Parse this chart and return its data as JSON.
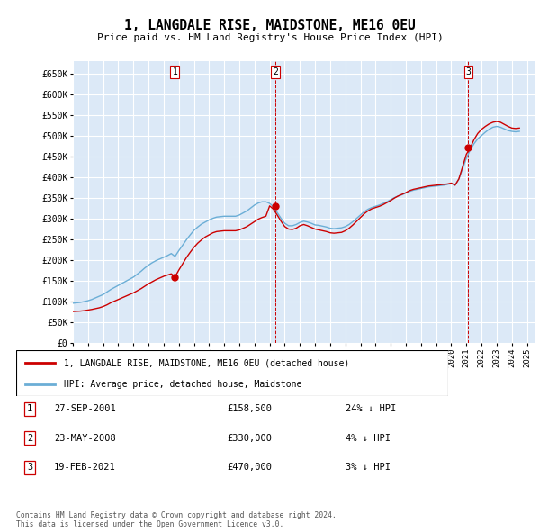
{
  "title": "1, LANGDALE RISE, MAIDSTONE, ME16 0EU",
  "subtitle": "Price paid vs. HM Land Registry's House Price Index (HPI)",
  "ylim": [
    0,
    680000
  ],
  "yticks": [
    0,
    50000,
    100000,
    150000,
    200000,
    250000,
    300000,
    350000,
    400000,
    450000,
    500000,
    550000,
    600000,
    650000
  ],
  "ytick_labels": [
    "£0",
    "£50K",
    "£100K",
    "£150K",
    "£200K",
    "£250K",
    "£300K",
    "£350K",
    "£400K",
    "£450K",
    "£500K",
    "£550K",
    "£600K",
    "£650K"
  ],
  "xlim_start": 1995.0,
  "xlim_end": 2025.5,
  "plot_bg_color": "#dce9f7",
  "grid_color": "#ffffff",
  "sale_color": "#cc0000",
  "hpi_color": "#6baed6",
  "sale_label": "1, LANGDALE RISE, MAIDSTONE, ME16 0EU (detached house)",
  "hpi_label": "HPI: Average price, detached house, Maidstone",
  "purchases": [
    {
      "num": 1,
      "date_label": "27-SEP-2001",
      "x": 2001.74,
      "price": 158500,
      "pct": "24%"
    },
    {
      "num": 2,
      "date_label": "23-MAY-2008",
      "x": 2008.39,
      "price": 330000,
      "pct": "4%"
    },
    {
      "num": 3,
      "date_label": "19-FEB-2021",
      "x": 2021.13,
      "price": 470000,
      "pct": "3%"
    }
  ],
  "footer": "Contains HM Land Registry data © Crown copyright and database right 2024.\nThis data is licensed under the Open Government Licence v3.0.",
  "hpi_data_x": [
    1995.0,
    1995.25,
    1995.5,
    1995.75,
    1996.0,
    1996.25,
    1996.5,
    1996.75,
    1997.0,
    1997.25,
    1997.5,
    1997.75,
    1998.0,
    1998.25,
    1998.5,
    1998.75,
    1999.0,
    1999.25,
    1999.5,
    1999.75,
    2000.0,
    2000.25,
    2000.5,
    2000.75,
    2001.0,
    2001.25,
    2001.5,
    2001.75,
    2002.0,
    2002.25,
    2002.5,
    2002.75,
    2003.0,
    2003.25,
    2003.5,
    2003.75,
    2004.0,
    2004.25,
    2004.5,
    2004.75,
    2005.0,
    2005.25,
    2005.5,
    2005.75,
    2006.0,
    2006.25,
    2006.5,
    2006.75,
    2007.0,
    2007.25,
    2007.5,
    2007.75,
    2008.0,
    2008.25,
    2008.5,
    2008.75,
    2009.0,
    2009.25,
    2009.5,
    2009.75,
    2010.0,
    2010.25,
    2010.5,
    2010.75,
    2011.0,
    2011.25,
    2011.5,
    2011.75,
    2012.0,
    2012.25,
    2012.5,
    2012.75,
    2013.0,
    2013.25,
    2013.5,
    2013.75,
    2014.0,
    2014.25,
    2014.5,
    2014.75,
    2015.0,
    2015.25,
    2015.5,
    2015.75,
    2016.0,
    2016.25,
    2016.5,
    2016.75,
    2017.0,
    2017.25,
    2017.5,
    2017.75,
    2018.0,
    2018.25,
    2018.5,
    2018.75,
    2019.0,
    2019.25,
    2019.5,
    2019.75,
    2020.0,
    2020.25,
    2020.5,
    2020.75,
    2021.0,
    2021.25,
    2021.5,
    2021.75,
    2022.0,
    2022.25,
    2022.5,
    2022.75,
    2023.0,
    2023.25,
    2023.5,
    2023.75,
    2024.0,
    2024.25,
    2024.5
  ],
  "hpi_data_y": [
    95000,
    96000,
    97000,
    99000,
    101000,
    104000,
    108000,
    112000,
    116000,
    122000,
    128000,
    133000,
    138000,
    143000,
    148000,
    153000,
    158000,
    165000,
    172000,
    180000,
    187000,
    193000,
    198000,
    202000,
    206000,
    210000,
    215000,
    208000,
    222000,
    235000,
    248000,
    260000,
    271000,
    279000,
    286000,
    291000,
    296000,
    300000,
    303000,
    304000,
    305000,
    305000,
    305000,
    305000,
    308000,
    313000,
    318000,
    325000,
    332000,
    337000,
    340000,
    340000,
    336000,
    328000,
    314000,
    300000,
    288000,
    282000,
    282000,
    285000,
    290000,
    293000,
    291000,
    288000,
    284000,
    283000,
    281000,
    279000,
    276000,
    275000,
    276000,
    277000,
    280000,
    285000,
    292000,
    300000,
    308000,
    316000,
    322000,
    326000,
    329000,
    332000,
    336000,
    340000,
    345000,
    350000,
    354000,
    357000,
    361000,
    365000,
    368000,
    370000,
    372000,
    374000,
    376000,
    377000,
    378000,
    379000,
    380000,
    382000,
    384000,
    380000,
    395000,
    420000,
    445000,
    465000,
    480000,
    492000,
    500000,
    508000,
    515000,
    520000,
    522000,
    520000,
    516000,
    512000,
    510000,
    509000,
    510000
  ],
  "sale_data_x": [
    1995.0,
    1995.25,
    1995.5,
    1995.75,
    1996.0,
    1996.25,
    1996.5,
    1996.75,
    1997.0,
    1997.25,
    1997.5,
    1997.75,
    1998.0,
    1998.25,
    1998.5,
    1998.75,
    1999.0,
    1999.25,
    1999.5,
    1999.75,
    2000.0,
    2000.25,
    2000.5,
    2000.75,
    2001.0,
    2001.25,
    2001.5,
    2001.75,
    2002.0,
    2002.25,
    2002.5,
    2002.75,
    2003.0,
    2003.25,
    2003.5,
    2003.75,
    2004.0,
    2004.25,
    2004.5,
    2004.75,
    2005.0,
    2005.25,
    2005.5,
    2005.75,
    2006.0,
    2006.25,
    2006.5,
    2006.75,
    2007.0,
    2007.25,
    2007.5,
    2007.75,
    2008.0,
    2008.25,
    2008.5,
    2008.75,
    2009.0,
    2009.25,
    2009.5,
    2009.75,
    2010.0,
    2010.25,
    2010.5,
    2010.75,
    2011.0,
    2011.25,
    2011.5,
    2011.75,
    2012.0,
    2012.25,
    2012.5,
    2012.75,
    2013.0,
    2013.25,
    2013.5,
    2013.75,
    2014.0,
    2014.25,
    2014.5,
    2014.75,
    2015.0,
    2015.25,
    2015.5,
    2015.75,
    2016.0,
    2016.25,
    2016.5,
    2016.75,
    2017.0,
    2017.25,
    2017.5,
    2017.75,
    2018.0,
    2018.25,
    2018.5,
    2018.75,
    2019.0,
    2019.25,
    2019.5,
    2019.75,
    2020.0,
    2020.25,
    2020.5,
    2020.75,
    2021.0,
    2021.25,
    2021.5,
    2021.75,
    2022.0,
    2022.25,
    2022.5,
    2022.75,
    2023.0,
    2023.25,
    2023.5,
    2023.75,
    2024.0,
    2024.25,
    2024.5
  ],
  "sale_data_y": [
    75000,
    75500,
    76000,
    77000,
    78500,
    80000,
    82000,
    84000,
    87000,
    91000,
    96000,
    100000,
    104000,
    108000,
    112000,
    116000,
    120000,
    125000,
    130000,
    136000,
    142000,
    147000,
    152000,
    156000,
    160000,
    163000,
    166000,
    158500,
    175000,
    190000,
    205000,
    218000,
    230000,
    240000,
    248000,
    255000,
    260000,
    265000,
    268000,
    269000,
    270000,
    270000,
    270000,
    270000,
    272000,
    276000,
    280000,
    286000,
    292000,
    298000,
    302000,
    305000,
    330000,
    322000,
    308000,
    293000,
    280000,
    274000,
    273000,
    276000,
    282000,
    285000,
    282000,
    278000,
    274000,
    272000,
    270000,
    268000,
    265000,
    264000,
    265000,
    266000,
    270000,
    276000,
    284000,
    293000,
    302000,
    311000,
    318000,
    323000,
    326000,
    329000,
    333000,
    338000,
    343000,
    349000,
    354000,
    358000,
    362000,
    367000,
    370000,
    372000,
    374000,
    376000,
    378000,
    379000,
    380000,
    381000,
    382000,
    383000,
    385000,
    380000,
    395000,
    425000,
    455000,
    470000,
    490000,
    505000,
    515000,
    522000,
    528000,
    532000,
    534000,
    532000,
    527000,
    522000,
    518000,
    517000,
    518000
  ]
}
